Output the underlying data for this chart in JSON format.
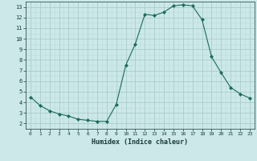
{
  "x": [
    0,
    1,
    2,
    3,
    4,
    5,
    6,
    7,
    8,
    9,
    10,
    11,
    12,
    13,
    14,
    15,
    16,
    17,
    18,
    19,
    20,
    21,
    22,
    23
  ],
  "y": [
    4.5,
    3.7,
    3.2,
    2.9,
    2.7,
    2.4,
    2.3,
    2.2,
    2.2,
    3.8,
    7.5,
    9.5,
    12.3,
    12.2,
    12.5,
    13.1,
    13.2,
    13.1,
    11.8,
    8.3,
    6.8,
    5.4,
    4.8,
    4.4
  ],
  "xlabel": "Humidex (Indice chaleur)",
  "xlim": [
    -0.5,
    23.5
  ],
  "ylim": [
    1.5,
    13.5
  ],
  "yticks": [
    2,
    3,
    4,
    5,
    6,
    7,
    8,
    9,
    10,
    11,
    12,
    13
  ],
  "xticks": [
    0,
    1,
    2,
    3,
    4,
    5,
    6,
    7,
    8,
    9,
    10,
    11,
    12,
    13,
    14,
    15,
    16,
    17,
    18,
    19,
    20,
    21,
    22,
    23
  ],
  "line_color": "#1a6b5a",
  "marker": "D",
  "marker_size": 2.0,
  "bg_color": "#cce8e8",
  "grid_color_major": "#aacccc",
  "grid_color_minor": "#bbdddd"
}
